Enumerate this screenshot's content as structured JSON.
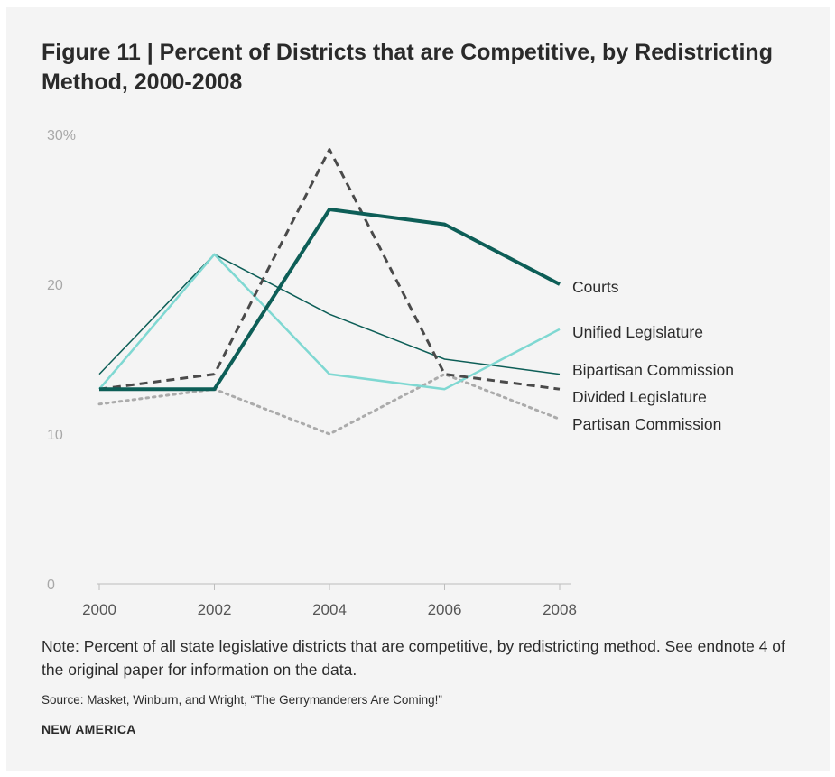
{
  "figure": {
    "title": "Figure 11 | Percent of Districts that are Competitive, by Redistricting Method, 2000-2008",
    "note": "Note: Percent of all state legislative districts that are competitive, by redistricting method. See endnote 4 of the original paper for information on the data.",
    "source": "Source: Masket, Winburn, and Wright, “The Gerrymanderers Are Coming!”",
    "brand": "NEW AMERICA"
  },
  "chart_data": {
    "type": "line",
    "title": "Figure 11 | Percent of Districts that are Competitive, by Redistricting Method, 2000-2008",
    "xlabel": "",
    "ylabel": "",
    "x": [
      2000,
      2002,
      2004,
      2006,
      2008
    ],
    "x_tick_labels": [
      "2000",
      "2002",
      "2004",
      "2006",
      "2008"
    ],
    "ylim": [
      0,
      30
    ],
    "y_ticks": [
      0,
      10,
      20,
      30
    ],
    "y_tick_labels": [
      "0",
      "10",
      "20",
      "30%"
    ],
    "grid": false,
    "legend": "direct labels at right end of lines",
    "series": [
      {
        "name": "Courts",
        "values": [
          13,
          13,
          25,
          24,
          20
        ],
        "color": "#0d5e57",
        "style": "solid-thick"
      },
      {
        "name": "Unified Legislature",
        "values": [
          13,
          22,
          14,
          13,
          17
        ],
        "color": "#7fd8d2",
        "style": "solid"
      },
      {
        "name": "Bipartisan Commission",
        "values": [
          14,
          22,
          18,
          15,
          14
        ],
        "color": "#0d5e57",
        "style": "solid-thin"
      },
      {
        "name": "Divided Legislature",
        "values": [
          13,
          14,
          29,
          14,
          13
        ],
        "color": "#4a4a4a",
        "style": "dashed"
      },
      {
        "name": "Partisan Commission",
        "values": [
          12,
          13,
          10,
          14,
          11
        ],
        "color": "#ababab",
        "style": "dotted"
      }
    ]
  }
}
